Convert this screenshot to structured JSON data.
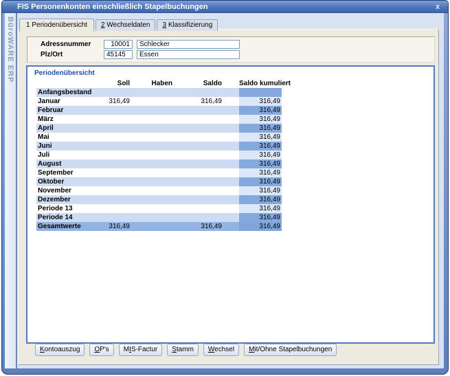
{
  "window": {
    "title": "FIS Personenkonten einschließlich Stapelbuchungen",
    "close_glyph": "x"
  },
  "sidebar": {
    "brand": "BüroWARE ERP"
  },
  "tabs": [
    {
      "num": "1",
      "label": "Periodenübersicht",
      "active": true,
      "mnemonic_underline": false
    },
    {
      "num": "2",
      "label": "Wechseldaten",
      "active": false,
      "mnemonic_underline": true
    },
    {
      "num": "3",
      "label": "Klassifizierung",
      "active": false,
      "mnemonic_underline": true
    }
  ],
  "form": {
    "rows": [
      {
        "label": "Adressnummer",
        "code": "10001",
        "code_align": "right",
        "text": "Schlecker"
      },
      {
        "label": "Plz/Ort",
        "code": "45145",
        "code_align": "left",
        "text": "Essen"
      }
    ]
  },
  "panel": {
    "title": "Periodenübersicht"
  },
  "table": {
    "columns": [
      "",
      "Soll",
      "Haben",
      "Saldo",
      "Saldo kumuliert"
    ],
    "rows": [
      {
        "name": "Anfangsbestand",
        "soll": "",
        "haben": "",
        "saldo": "",
        "kumuliert": "",
        "total": false
      },
      {
        "name": "Januar",
        "soll": "316,49",
        "haben": "",
        "saldo": "316,49",
        "kumuliert": "316,49",
        "total": false
      },
      {
        "name": "Februar",
        "soll": "",
        "haben": "",
        "saldo": "",
        "kumuliert": "316,49",
        "total": false
      },
      {
        "name": "März",
        "soll": "",
        "haben": "",
        "saldo": "",
        "kumuliert": "316,49",
        "total": false
      },
      {
        "name": "April",
        "soll": "",
        "haben": "",
        "saldo": "",
        "kumuliert": "316,49",
        "total": false
      },
      {
        "name": "Mai",
        "soll": "",
        "haben": "",
        "saldo": "",
        "kumuliert": "316,49",
        "total": false
      },
      {
        "name": "Juni",
        "soll": "",
        "haben": "",
        "saldo": "",
        "kumuliert": "316,49",
        "total": false
      },
      {
        "name": "Juli",
        "soll": "",
        "haben": "",
        "saldo": "",
        "kumuliert": "316,49",
        "total": false
      },
      {
        "name": "August",
        "soll": "",
        "haben": "",
        "saldo": "",
        "kumuliert": "316,49",
        "total": false
      },
      {
        "name": "September",
        "soll": "",
        "haben": "",
        "saldo": "",
        "kumuliert": "316,49",
        "total": false
      },
      {
        "name": "Oktober",
        "soll": "",
        "haben": "",
        "saldo": "",
        "kumuliert": "316,49",
        "total": false
      },
      {
        "name": "November",
        "soll": "",
        "haben": "",
        "saldo": "",
        "kumuliert": "316,49",
        "total": false
      },
      {
        "name": "Dezember",
        "soll": "",
        "haben": "",
        "saldo": "",
        "kumuliert": "316,49",
        "total": false
      },
      {
        "name": "Periode 13",
        "soll": "",
        "haben": "",
        "saldo": "",
        "kumuliert": "316,49",
        "total": false
      },
      {
        "name": "Periode 14",
        "soll": "",
        "haben": "",
        "saldo": "",
        "kumuliert": "316,49",
        "total": false
      },
      {
        "name": "Gesamtwerte",
        "soll": "316,49",
        "haben": "",
        "saldo": "316,49",
        "kumuliert": "316,49",
        "total": true
      }
    ]
  },
  "buttons": [
    {
      "label": "Kontoauszug",
      "mnemonic_index": 0
    },
    {
      "label": "OP's",
      "mnemonic_index": 0
    },
    {
      "label": "MIS-Factur",
      "mnemonic_index": 1
    },
    {
      "label": "Stamm",
      "mnemonic_index": 0
    },
    {
      "label": "Wechsel",
      "mnemonic_index": 0
    },
    {
      "label": "Mit/Ohne Stapelbuchungen",
      "mnemonic_index": 0
    }
  ],
  "colors": {
    "titlebar": "#4a73b6",
    "frame": "#5d80bd",
    "stripe": "#cddcf2",
    "kumuliert_medium": "#86a9dd",
    "kumuliert_pale": "#dce8f8",
    "total_row": "#92b3e4",
    "panel_border": "#5379bb",
    "panel_title_text": "#1d4fa8"
  }
}
